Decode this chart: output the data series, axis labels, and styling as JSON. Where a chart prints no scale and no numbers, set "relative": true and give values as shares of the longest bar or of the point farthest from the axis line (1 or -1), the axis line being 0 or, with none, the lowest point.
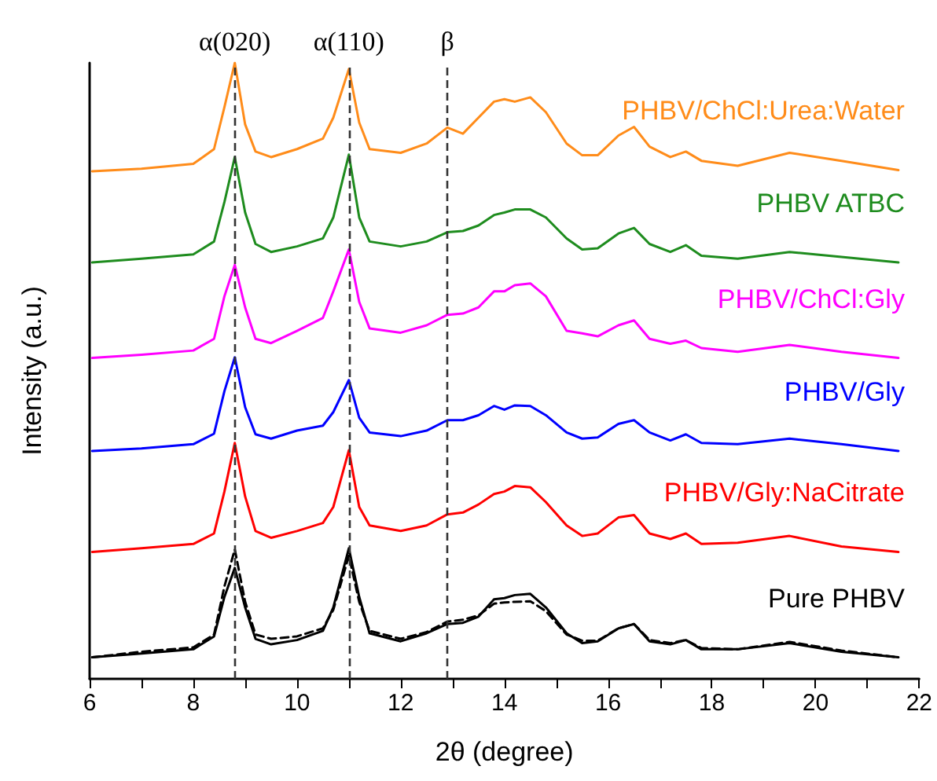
{
  "chart_data": {
    "type": "line",
    "xlabel": "2θ (degree)",
    "ylabel": "Intensity (a.u.)",
    "relative": true,
    "grid": false,
    "legend": false,
    "marker": "none",
    "line_style": "solid",
    "xlim": [
      6,
      22
    ],
    "xticks": [
      6,
      {
        "value": 7,
        "label": null
      },
      8,
      {
        "value": 9,
        "label": null
      },
      10,
      {
        "value": 11,
        "label": null
      },
      12,
      {
        "value": 13,
        "label": null
      },
      14,
      {
        "value": 15,
        "label": null
      },
      16,
      {
        "value": 17,
        "label": null
      },
      18,
      {
        "value": 19,
        "label": null
      },
      20,
      {
        "value": 21,
        "label": null
      },
      22
    ],
    "x": [
      6.05,
      7,
      8,
      8.4,
      8.6,
      8.8,
      9.0,
      9.2,
      9.5,
      10,
      10.5,
      10.7,
      11.0,
      11.2,
      11.4,
      12,
      12.5,
      12.9,
      13.2,
      13.5,
      13.8,
      14.0,
      14.2,
      14.5,
      14.8,
      15.2,
      15.5,
      15.8,
      16.2,
      16.5,
      16.8,
      17.2,
      17.5,
      17.8,
      18.5,
      19.5,
      20.5,
      21.6
    ],
    "series": [
      {
        "name": "PHBV/ChCl:Urea:Water",
        "color": "#ff8c1a",
        "values": [
          0.824,
          0.828,
          0.836,
          0.86,
          0.928,
          1.0,
          0.9,
          0.856,
          0.847,
          0.86,
          0.877,
          0.911,
          0.99,
          0.903,
          0.86,
          0.854,
          0.869,
          0.895,
          0.885,
          0.911,
          0.937,
          0.941,
          0.937,
          0.944,
          0.92,
          0.869,
          0.85,
          0.85,
          0.882,
          0.896,
          0.864,
          0.847,
          0.856,
          0.841,
          0.833,
          0.854,
          0.841,
          0.826
        ]
      },
      {
        "name": "PHBV ATBC",
        "color": "#1e8c1e",
        "values": [
          0.676,
          0.682,
          0.689,
          0.71,
          0.774,
          0.847,
          0.757,
          0.706,
          0.693,
          0.702,
          0.715,
          0.749,
          0.851,
          0.749,
          0.71,
          0.702,
          0.71,
          0.725,
          0.727,
          0.736,
          0.753,
          0.757,
          0.762,
          0.762,
          0.749,
          0.715,
          0.697,
          0.699,
          0.723,
          0.732,
          0.706,
          0.693,
          0.704,
          0.687,
          0.682,
          0.693,
          0.685,
          0.676
        ]
      },
      {
        "name": "PHBV/ChCl:Gly",
        "color": "#ff00ff",
        "values": [
          0.521,
          0.526,
          0.533,
          0.552,
          0.621,
          0.672,
          0.603,
          0.552,
          0.545,
          0.565,
          0.586,
          0.629,
          0.697,
          0.612,
          0.569,
          0.562,
          0.574,
          0.591,
          0.593,
          0.603,
          0.629,
          0.629,
          0.639,
          0.642,
          0.621,
          0.565,
          0.561,
          0.556,
          0.574,
          0.582,
          0.552,
          0.544,
          0.549,
          0.537,
          0.531,
          0.542,
          0.531,
          0.521
        ]
      },
      {
        "name": "PHBV/Gly",
        "color": "#0000ff",
        "values": [
          0.37,
          0.374,
          0.381,
          0.398,
          0.467,
          0.522,
          0.441,
          0.397,
          0.39,
          0.403,
          0.411,
          0.433,
          0.485,
          0.424,
          0.4,
          0.394,
          0.403,
          0.42,
          0.42,
          0.428,
          0.443,
          0.437,
          0.444,
          0.443,
          0.428,
          0.4,
          0.39,
          0.392,
          0.414,
          0.42,
          0.4,
          0.387,
          0.397,
          0.383,
          0.381,
          0.39,
          0.381,
          0.37
        ]
      },
      {
        "name": "PHBV/Gly:NaCitrate",
        "color": "#ff0000",
        "values": [
          0.206,
          0.212,
          0.219,
          0.236,
          0.304,
          0.383,
          0.296,
          0.24,
          0.229,
          0.24,
          0.253,
          0.279,
          0.371,
          0.279,
          0.249,
          0.24,
          0.249,
          0.267,
          0.27,
          0.283,
          0.3,
          0.304,
          0.313,
          0.311,
          0.287,
          0.249,
          0.232,
          0.236,
          0.262,
          0.266,
          0.236,
          0.227,
          0.236,
          0.219,
          0.221,
          0.232,
          0.215,
          0.206
        ]
      },
      {
        "name": "Pure PHBV",
        "color": "#000000",
        "values": [
          0.035,
          0.041,
          0.048,
          0.069,
          0.133,
          0.18,
          0.116,
          0.065,
          0.056,
          0.063,
          0.078,
          0.116,
          0.212,
          0.133,
          0.074,
          0.061,
          0.074,
          0.089,
          0.091,
          0.101,
          0.129,
          0.131,
          0.136,
          0.138,
          0.116,
          0.074,
          0.058,
          0.061,
          0.082,
          0.089,
          0.061,
          0.056,
          0.063,
          0.048,
          0.048,
          0.058,
          0.044,
          0.035
        ]
      },
      {
        "color": "#000000",
        "line_style": "dashed",
        "values": [
          0.035,
          0.044,
          0.051,
          0.072,
          0.15,
          0.21,
          0.125,
          0.072,
          0.065,
          0.069,
          0.082,
          0.112,
          0.2,
          0.125,
          0.078,
          0.065,
          0.076,
          0.093,
          0.096,
          0.103,
          0.122,
          0.124,
          0.125,
          0.126,
          0.11,
          0.072,
          0.062,
          0.062,
          0.082,
          0.089,
          0.063,
          0.058,
          0.063,
          0.05,
          0.048,
          0.06,
          0.046,
          0.035
        ]
      }
    ],
    "ref_lines": [
      {
        "axis": "x",
        "value": 8.8,
        "label": "α(020)",
        "color": "#333333",
        "line_style": "dashed"
      },
      {
        "axis": "x",
        "value": 11.0,
        "label": "α(110)",
        "color": "#333333",
        "line_style": "dashed"
      },
      {
        "axis": "x",
        "value": 12.9,
        "label": "β",
        "color": "#333333",
        "line_style": "dashed"
      }
    ]
  }
}
